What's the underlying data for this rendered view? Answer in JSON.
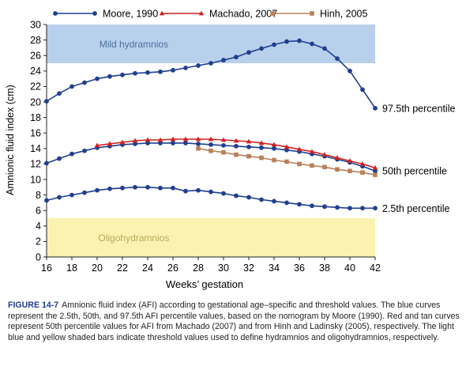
{
  "chart_data": {
    "type": "line",
    "xlabel": "Weeks’ gestation",
    "ylabel": "Amnionic fluid index (cm)",
    "xlim": [
      16,
      42
    ],
    "ylim": [
      0,
      30
    ],
    "xticks": [
      "16",
      "18",
      "20",
      "22",
      "24",
      "26",
      "28",
      "30",
      "32",
      "34",
      "36",
      "38",
      "40",
      "42"
    ],
    "yticks": [
      "0",
      "2",
      "4",
      "6",
      "8",
      "10",
      "12",
      "14",
      "16",
      "18",
      "20",
      "22",
      "24",
      "26",
      "28",
      "30"
    ],
    "grid": false,
    "legend_position": "top",
    "bands": [
      {
        "label": "Mild hydramnios",
        "y0": 25,
        "y1": 30,
        "color": "#b8d0ec"
      },
      {
        "label": "Oligohydramnios",
        "y0": 0,
        "y1": 5,
        "color": "#fbf2b1"
      }
    ],
    "series": [
      {
        "name": "Moore, 1990",
        "group": "moore",
        "color": "#1f3f8f",
        "marker": "circle",
        "x": [
          16,
          17,
          18,
          19,
          20,
          21,
          22,
          23,
          24,
          25,
          26,
          27,
          28,
          29,
          30,
          31,
          32,
          33,
          34,
          35,
          36,
          37,
          38,
          39,
          40,
          41,
          42
        ],
        "y": [
          20.1,
          21.1,
          22.0,
          22.5,
          23.0,
          23.3,
          23.5,
          23.7,
          23.8,
          23.9,
          24.1,
          24.4,
          24.7,
          25.0,
          25.4,
          25.8,
          26.4,
          26.9,
          27.4,
          27.8,
          27.9,
          27.5,
          26.9,
          25.6,
          24.0,
          21.6,
          19.2
        ]
      },
      {
        "name": "Moore, 1990",
        "group": "moore",
        "color": "#1f3f8f",
        "marker": "circle",
        "x": [
          16,
          17,
          18,
          19,
          20,
          21,
          22,
          23,
          24,
          25,
          26,
          27,
          28,
          29,
          30,
          31,
          32,
          33,
          34,
          35,
          36,
          37,
          38,
          39,
          40,
          41,
          42
        ],
        "y": [
          12.1,
          12.7,
          13.3,
          13.7,
          14.1,
          14.3,
          14.5,
          14.6,
          14.7,
          14.7,
          14.7,
          14.7,
          14.6,
          14.5,
          14.4,
          14.3,
          14.2,
          14.1,
          14.0,
          13.8,
          13.6,
          13.3,
          13.0,
          12.6,
          12.2,
          11.7,
          11.1
        ]
      },
      {
        "name": "Moore, 1990",
        "group": "moore",
        "color": "#1f3f8f",
        "marker": "circle",
        "x": [
          16,
          17,
          18,
          19,
          20,
          21,
          22,
          23,
          24,
          25,
          26,
          27,
          28,
          29,
          30,
          31,
          32,
          33,
          34,
          35,
          36,
          37,
          38,
          39,
          40,
          41,
          42
        ],
        "y": [
          7.3,
          7.7,
          8.0,
          8.3,
          8.6,
          8.8,
          8.9,
          9.0,
          9.0,
          8.9,
          8.9,
          8.5,
          8.6,
          8.4,
          8.2,
          7.9,
          7.7,
          7.4,
          7.2,
          7.0,
          6.8,
          6.6,
          6.5,
          6.4,
          6.3,
          6.3,
          6.3
        ]
      },
      {
        "name": "Machado, 2007",
        "group": "machado",
        "color": "#d42020",
        "marker": "triangle",
        "x": [
          20,
          21,
          22,
          23,
          24,
          25,
          26,
          27,
          28,
          29,
          30,
          31,
          32,
          33,
          34,
          35,
          36,
          37,
          38,
          39,
          40,
          41,
          42
        ],
        "y": [
          14.4,
          14.6,
          14.8,
          15.0,
          15.1,
          15.1,
          15.2,
          15.2,
          15.2,
          15.2,
          15.1,
          15.0,
          14.9,
          14.7,
          14.5,
          14.2,
          13.9,
          13.6,
          13.2,
          12.8,
          12.4,
          12.0,
          11.5
        ]
      },
      {
        "name": "Hinh, 2005",
        "group": "hinh",
        "color": "#b8805a",
        "marker": "square",
        "x": [
          28,
          29,
          30,
          31,
          32,
          33,
          34,
          35,
          36,
          37,
          38,
          39,
          40,
          41,
          42
        ],
        "y": [
          14.0,
          13.7,
          13.5,
          13.2,
          13.0,
          12.8,
          12.5,
          12.3,
          12.0,
          11.8,
          11.6,
          11.3,
          11.1,
          10.9,
          10.6
        ]
      }
    ],
    "legend": [
      {
        "name": "Moore, 1990",
        "color": "#1f3f8f",
        "marker": "circle"
      },
      {
        "name": "Machado, 2007",
        "color": "#d42020",
        "marker": "triangle"
      },
      {
        "name": "Hinh, 2005",
        "color": "#b8805a",
        "marker": "square"
      }
    ],
    "annotations": [
      {
        "text": "97.5th percentile",
        "x": 42,
        "y": 19.2
      },
      {
        "text": "50th percentile",
        "x": 42,
        "y": 11.1
      },
      {
        "text": "2.5th percentile",
        "x": 42,
        "y": 6.3
      }
    ]
  },
  "caption": {
    "label": "FIGURE 14-7",
    "text": "Amnionic fluid index (AFI) according to gestational age–specific and threshold values. The blue curves represent the 2.5th, 50th, and 97.5th AFI percentile values, based on the nomogram by Moore (1990). Red and tan curves represent 50th percentile values for AFI from Machado (2007) and from Hinh and Ladinsky (2005), respectively. The light blue and yellow shaded bars indicate threshold values used to define hydramnios and oligohydramnios, respectively."
  }
}
